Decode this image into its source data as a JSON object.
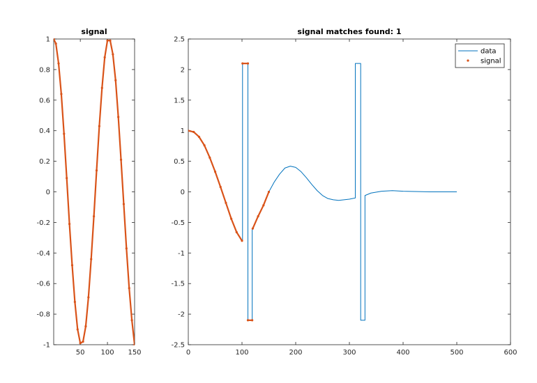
{
  "chart_data": [
    {
      "type": "line",
      "title": "signal",
      "xlabel": "",
      "ylabel": "",
      "xlim": [
        1,
        150
      ],
      "ylim": [
        -1,
        1
      ],
      "xticks": [
        50,
        100,
        150
      ],
      "yticks": [
        -1,
        -0.8,
        -0.6,
        -0.4,
        -0.2,
        0,
        0.2,
        0.4,
        0.6,
        0.8,
        1
      ],
      "grid": false,
      "series": [
        {
          "color": "#d95319",
          "marker": "dot",
          "x": [
            1,
            5,
            10,
            15,
            20,
            25,
            30,
            35,
            40,
            45,
            50,
            55,
            60,
            65,
            70,
            75,
            80,
            85,
            90,
            95,
            100,
            105,
            110,
            115,
            120,
            125,
            130,
            135,
            140,
            145,
            150
          ],
          "values": [
            1,
            0.97,
            0.84,
            0.64,
            0.38,
            0.09,
            -0.21,
            -0.48,
            -0.72,
            -0.9,
            -0.99,
            -0.98,
            -0.88,
            -0.69,
            -0.44,
            -0.16,
            0.14,
            0.43,
            0.68,
            0.88,
            0.99,
            0.99,
            0.9,
            0.73,
            0.49,
            0.21,
            -0.08,
            -0.37,
            -0.63,
            -0.84,
            -1
          ]
        }
      ]
    },
    {
      "type": "line",
      "title": "signal matches found: 1",
      "xlabel": "",
      "ylabel": "",
      "xlim": [
        0,
        600
      ],
      "ylim": [
        -2.5,
        2.5
      ],
      "xticks": [
        0,
        100,
        200,
        300,
        400,
        500,
        600
      ],
      "yticks": [
        -2.5,
        -2,
        -1.5,
        -1,
        -0.5,
        0,
        0.5,
        1,
        1.5,
        2,
        2.5
      ],
      "grid": false,
      "legend": {
        "position": "top-right",
        "entries": [
          "data",
          "signal"
        ]
      },
      "series": [
        {
          "name": "data",
          "color": "#0072bd",
          "x": [
            0,
            10,
            20,
            30,
            40,
            50,
            60,
            70,
            80,
            90,
            100,
            101,
            101,
            111,
            111,
            119,
            119,
            120,
            130,
            140,
            150,
            160,
            170,
            180,
            190,
            200,
            210,
            220,
            230,
            240,
            250,
            260,
            270,
            280,
            290,
            300,
            311,
            311,
            321,
            321,
            329,
            329,
            340,
            360,
            380,
            400,
            450,
            500
          ],
          "values": [
            1,
            0.98,
            0.9,
            0.76,
            0.56,
            0.33,
            0.08,
            -0.18,
            -0.44,
            -0.66,
            -0.8,
            -0.8,
            2.1,
            2.1,
            -2.1,
            -2.1,
            -0.6,
            -0.6,
            -0.4,
            -0.22,
            0.0,
            0.16,
            0.29,
            0.39,
            0.42,
            0.4,
            0.33,
            0.23,
            0.12,
            0.02,
            -0.06,
            -0.11,
            -0.13,
            -0.14,
            -0.13,
            -0.12,
            -0.1,
            2.1,
            2.1,
            -2.1,
            -2.1,
            -0.06,
            -0.02,
            0.01,
            0.02,
            0.01,
            0.0,
            0.0
          ]
        },
        {
          "name": "signal",
          "color": "#d95319",
          "marker": "dot",
          "segments": [
            {
              "x": [
                0,
                10,
                20,
                30,
                40,
                50,
                60,
                70,
                80,
                90,
                100
              ],
              "values": [
                1,
                0.98,
                0.9,
                0.76,
                0.56,
                0.33,
                0.08,
                -0.18,
                -0.44,
                -0.66,
                -0.8
              ]
            },
            {
              "x": [
                101,
                111
              ],
              "values": [
                2.1,
                2.1
              ]
            },
            {
              "x": [
                111,
                119
              ],
              "values": [
                -2.1,
                -2.1
              ]
            },
            {
              "x": [
                120,
                130,
                140,
                150
              ],
              "values": [
                -0.6,
                -0.4,
                -0.22,
                0.0
              ]
            }
          ]
        }
      ]
    }
  ]
}
